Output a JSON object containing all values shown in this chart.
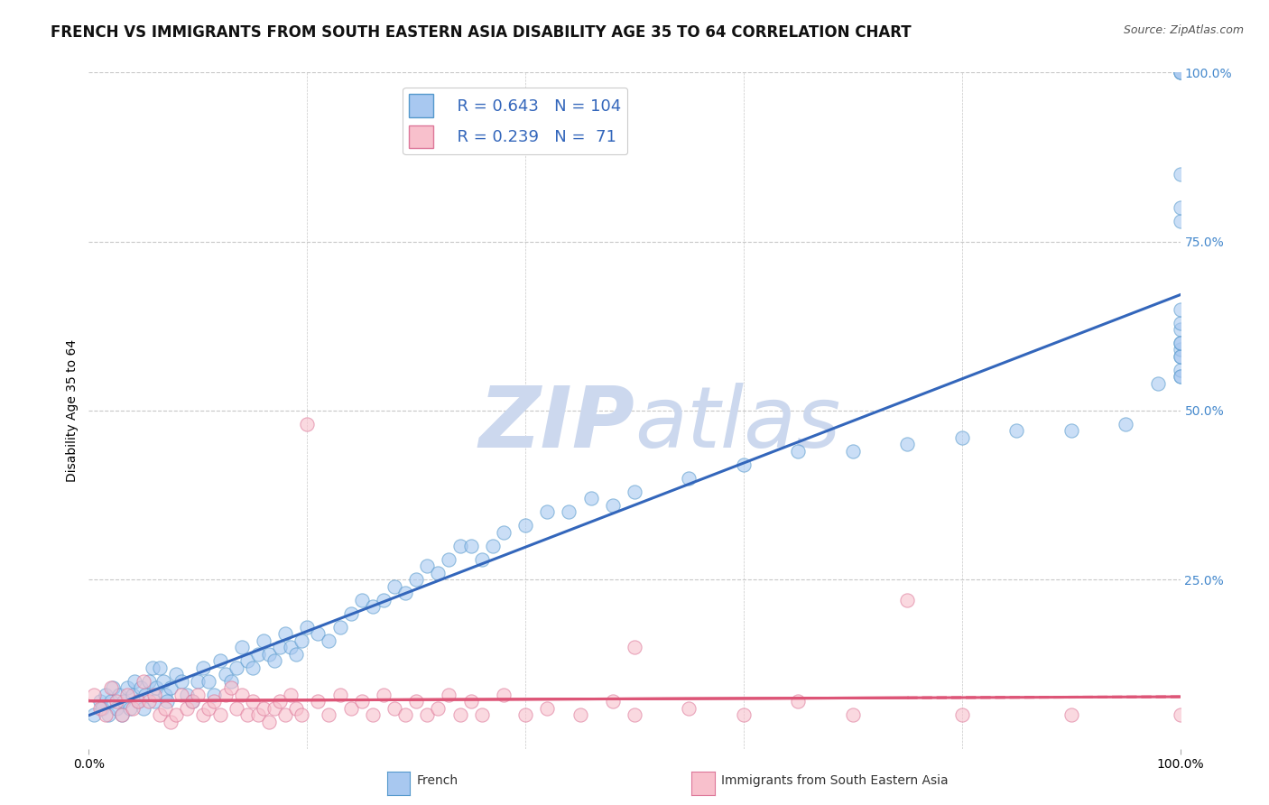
{
  "title": "FRENCH VS IMMIGRANTS FROM SOUTH EASTERN ASIA DISABILITY AGE 35 TO 64 CORRELATION CHART",
  "source": "Source: ZipAtlas.com",
  "ylabel": "Disability Age 35 to 64",
  "watermark": "ZIPatlas",
  "series": [
    {
      "name": "French",
      "R": 0.643,
      "N": 104,
      "marker_color": "#a8c8f0",
      "marker_edge": "#5599cc",
      "line_color": "#3366bb",
      "line_style": "solid",
      "x": [
        0.5,
        1.0,
        1.2,
        1.5,
        1.8,
        2.0,
        2.2,
        2.5,
        2.8,
        3.0,
        3.2,
        3.5,
        3.8,
        4.0,
        4.2,
        4.5,
        4.8,
        5.0,
        5.2,
        5.5,
        5.8,
        6.0,
        6.2,
        6.5,
        6.8,
        7.0,
        7.2,
        7.5,
        8.0,
        8.5,
        9.0,
        9.5,
        10.0,
        10.5,
        11.0,
        11.5,
        12.0,
        12.5,
        13.0,
        13.5,
        14.0,
        14.5,
        15.0,
        15.5,
        16.0,
        16.5,
        17.0,
        17.5,
        18.0,
        18.5,
        19.0,
        19.5,
        20.0,
        21.0,
        22.0,
        23.0,
        24.0,
        25.0,
        26.0,
        27.0,
        28.0,
        29.0,
        30.0,
        31.0,
        32.0,
        33.0,
        34.0,
        35.0,
        36.0,
        37.0,
        38.0,
        40.0,
        42.0,
        44.0,
        46.0,
        48.0,
        50.0,
        55.0,
        60.0,
        65.0,
        70.0,
        75.0,
        80.0,
        85.0,
        90.0,
        95.0,
        98.0,
        100.0,
        100.0,
        100.0,
        100.0,
        100.0,
        100.0,
        100.0,
        100.0,
        100.0,
        100.0,
        100.0,
        100.0,
        100.0,
        100.0,
        100.0,
        100.0,
        100.0
      ],
      "y": [
        5,
        7,
        6,
        8,
        5,
        7,
        9,
        6,
        8,
        5,
        7,
        9,
        6,
        8,
        10,
        7,
        9,
        6,
        8,
        10,
        12,
        7,
        9,
        12,
        10,
        8,
        7,
        9,
        11,
        10,
        8,
        7,
        10,
        12,
        10,
        8,
        13,
        11,
        10,
        12,
        15,
        13,
        12,
        14,
        16,
        14,
        13,
        15,
        17,
        15,
        14,
        16,
        18,
        17,
        16,
        18,
        20,
        22,
        21,
        22,
        24,
        23,
        25,
        27,
        26,
        28,
        30,
        30,
        28,
        30,
        32,
        33,
        35,
        35,
        37,
        36,
        38,
        40,
        42,
        44,
        44,
        45,
        46,
        47,
        47,
        48,
        54,
        55,
        56,
        58,
        59,
        60,
        62,
        55,
        58,
        60,
        63,
        65,
        100,
        100,
        100,
        85,
        78,
        80
      ]
    },
    {
      "name": "Immigrants from South Eastern Asia",
      "R": 0.239,
      "N": 71,
      "marker_color": "#f8c0cc",
      "marker_edge": "#dd7799",
      "line_color": "#dd5577",
      "line_style": "solid",
      "x": [
        0.5,
        1.0,
        1.5,
        2.0,
        2.5,
        3.0,
        3.5,
        4.0,
        4.5,
        5.0,
        5.5,
        6.0,
        6.5,
        7.0,
        7.5,
        8.0,
        8.5,
        9.0,
        9.5,
        10.0,
        10.5,
        11.0,
        11.5,
        12.0,
        12.5,
        13.0,
        13.5,
        14.0,
        14.5,
        15.0,
        15.5,
        16.0,
        16.5,
        17.0,
        17.5,
        18.0,
        18.5,
        19.0,
        19.5,
        20.0,
        21.0,
        22.0,
        23.0,
        24.0,
        25.0,
        26.0,
        27.0,
        28.0,
        29.0,
        30.0,
        31.0,
        32.0,
        33.0,
        34.0,
        35.0,
        36.0,
        38.0,
        40.0,
        42.0,
        45.0,
        48.0,
        50.0,
        55.0,
        60.0,
        65.0,
        70.0,
        75.0,
        80.0,
        90.0,
        100.0,
        50.0
      ],
      "y": [
        8,
        6,
        5,
        9,
        7,
        5,
        8,
        6,
        7,
        10,
        7,
        8,
        5,
        6,
        4,
        5,
        8,
        6,
        7,
        8,
        5,
        6,
        7,
        5,
        8,
        9,
        6,
        8,
        5,
        7,
        5,
        6,
        4,
        6,
        7,
        5,
        8,
        6,
        5,
        48,
        7,
        5,
        8,
        6,
        7,
        5,
        8,
        6,
        5,
        7,
        5,
        6,
        8,
        5,
        7,
        5,
        8,
        5,
        6,
        5,
        7,
        5,
        6,
        5,
        7,
        5,
        22,
        5,
        5,
        5,
        15
      ]
    }
  ],
  "xlim": [
    0,
    100
  ],
  "ylim": [
    0,
    100
  ],
  "x_ticks": [
    0,
    100
  ],
  "x_tick_labels": [
    "0.0%",
    "100.0%"
  ],
  "y_right_ticks": [
    0,
    25,
    50,
    75,
    100
  ],
  "y_right_labels": [
    "",
    "25.0%",
    "50.0%",
    "75.0%",
    "100.0%"
  ],
  "legend_patch_colors": [
    "#a8c8f0",
    "#f8c0cc"
  ],
  "legend_patch_edges": [
    "#5599cc",
    "#dd7799"
  ],
  "legend_R": [
    0.643,
    0.239
  ],
  "legend_N": [
    104,
    71
  ],
  "grid_color": "#c8c8c8",
  "background_color": "#ffffff",
  "watermark_color": "#ccd8ee",
  "title_fontsize": 12,
  "axis_label_fontsize": 10,
  "tick_fontsize": 10,
  "legend_fontsize": 13,
  "bottom_label_blue": "French",
  "bottom_label_pink": "Immigrants from South Eastern Asia"
}
